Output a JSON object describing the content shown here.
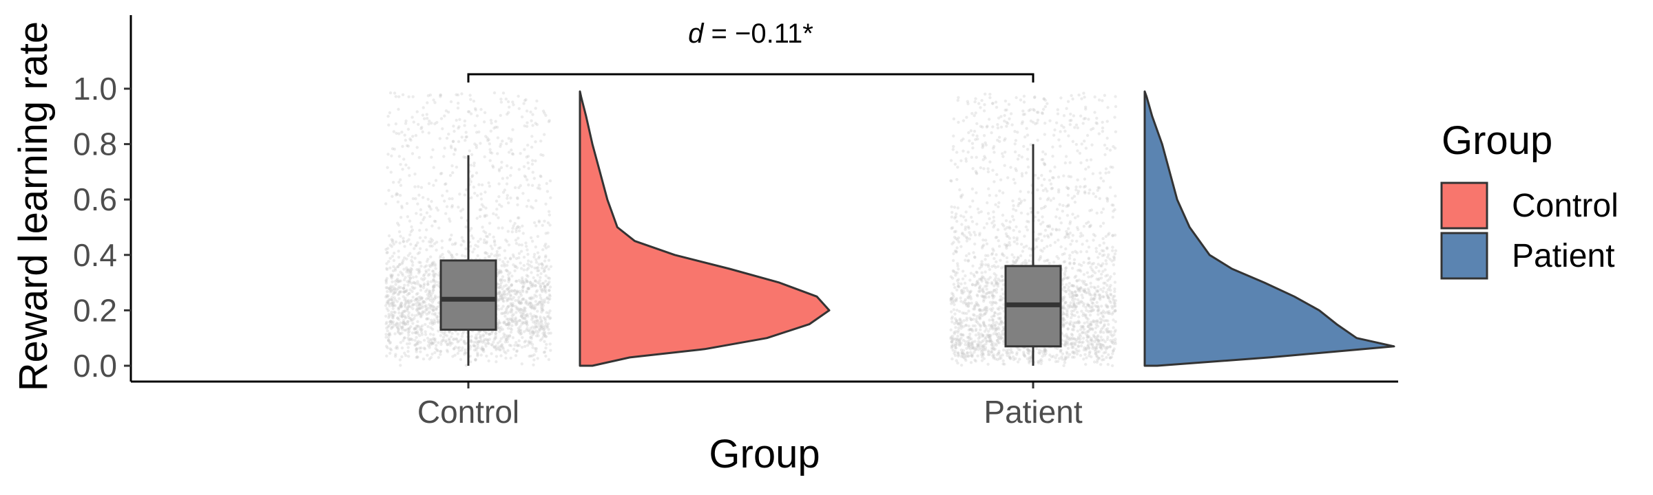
{
  "chart_data": {
    "type": "raincloud",
    "xlabel": "Group",
    "ylabel": "Reward learning rate",
    "categories": [
      "Control",
      "Patient"
    ],
    "ylim": [
      -0.05,
      1.28
    ],
    "yticks": [
      0.0,
      0.2,
      0.4,
      0.6,
      0.8,
      1.0
    ],
    "ytick_labels": [
      "0.0",
      "0.2",
      "0.4",
      "0.6",
      "0.8",
      "1.0"
    ],
    "grid": false,
    "legend": {
      "title": "Group",
      "position": "right",
      "entries": [
        {
          "label": "Control",
          "color": "#F8766D"
        },
        {
          "label": "Patient",
          "color": "#5B84B1"
        }
      ]
    },
    "annotation": {
      "symbol": "d",
      "text": " = −0.11*",
      "between": [
        "Control",
        "Patient"
      ],
      "y": 1.05
    },
    "series": [
      {
        "name": "Control",
        "color": "#F8766D",
        "box": {
          "whisker_low": 0.0,
          "q1": 0.13,
          "median": 0.24,
          "q3": 0.38,
          "whisker_high": 0.76
        },
        "density": [
          [
            0.0,
            0.05
          ],
          [
            0.03,
            0.2
          ],
          [
            0.06,
            0.5
          ],
          [
            0.1,
            0.75
          ],
          [
            0.15,
            0.92
          ],
          [
            0.2,
            1.0
          ],
          [
            0.25,
            0.95
          ],
          [
            0.3,
            0.8
          ],
          [
            0.35,
            0.6
          ],
          [
            0.4,
            0.38
          ],
          [
            0.45,
            0.22
          ],
          [
            0.5,
            0.15
          ],
          [
            0.6,
            0.11
          ],
          [
            0.7,
            0.08
          ],
          [
            0.8,
            0.05
          ],
          [
            0.9,
            0.025
          ],
          [
            0.97,
            0.005
          ],
          [
            0.99,
            0.0
          ]
        ]
      },
      {
        "name": "Patient",
        "color": "#5B84B1",
        "box": {
          "whisker_low": 0.0,
          "q1": 0.07,
          "median": 0.22,
          "q3": 0.36,
          "whisker_high": 0.8
        },
        "density": [
          [
            0.0,
            0.05
          ],
          [
            0.03,
            0.5
          ],
          [
            0.07,
            1.0
          ],
          [
            0.1,
            0.85
          ],
          [
            0.15,
            0.77
          ],
          [
            0.2,
            0.7
          ],
          [
            0.25,
            0.6
          ],
          [
            0.3,
            0.48
          ],
          [
            0.35,
            0.35
          ],
          [
            0.4,
            0.26
          ],
          [
            0.5,
            0.18
          ],
          [
            0.6,
            0.13
          ],
          [
            0.7,
            0.1
          ],
          [
            0.8,
            0.07
          ],
          [
            0.9,
            0.03
          ],
          [
            0.97,
            0.008
          ],
          [
            0.99,
            0.0
          ]
        ]
      }
    ]
  }
}
